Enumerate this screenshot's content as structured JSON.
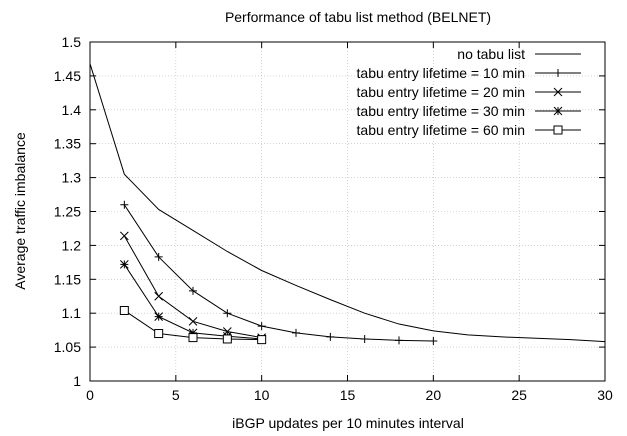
{
  "chart_data": {
    "type": "line",
    "title": "Performance of tabu list method (BELNET)",
    "xlabel": "iBGP updates per 10 minutes interval",
    "ylabel": "Average traffic imbalance",
    "xlim": [
      0,
      30
    ],
    "ylim": [
      1,
      1.5
    ],
    "xticks": [
      0,
      5,
      10,
      15,
      20,
      25,
      30
    ],
    "yticks": [
      1,
      1.05,
      1.1,
      1.15,
      1.2,
      1.25,
      1.3,
      1.35,
      1.4,
      1.45,
      1.5
    ],
    "xtick_labels": [
      "0",
      "5",
      "10",
      "15",
      "20",
      "25",
      "30"
    ],
    "ytick_labels": [
      "1",
      "1.05",
      "1.1",
      "1.15",
      "1.2",
      "1.25",
      "1.3",
      "1.35",
      "1.4",
      "1.45",
      "1.5"
    ],
    "grid": true,
    "legend_position": "top-right",
    "series": [
      {
        "name": "no tabu list",
        "marker": "none",
        "x": [
          0,
          2,
          4,
          6,
          8,
          10,
          12,
          14,
          16,
          18,
          20,
          22,
          24,
          26,
          28,
          30
        ],
        "y": [
          1.468,
          1.305,
          1.253,
          1.222,
          1.191,
          1.163,
          1.141,
          1.12,
          1.1,
          1.084,
          1.074,
          1.068,
          1.065,
          1.063,
          1.061,
          1.058
        ]
      },
      {
        "name": "tabu entry lifetime = 10 min",
        "marker": "plus",
        "x": [
          2,
          4,
          6,
          8,
          10,
          12,
          14,
          16,
          18,
          20
        ],
        "y": [
          1.26,
          1.183,
          1.133,
          1.1,
          1.081,
          1.071,
          1.065,
          1.062,
          1.06,
          1.059
        ]
      },
      {
        "name": "tabu entry lifetime = 20 min",
        "marker": "cross",
        "x": [
          2,
          4,
          6,
          8,
          10
        ],
        "y": [
          1.214,
          1.125,
          1.088,
          1.073,
          1.064
        ]
      },
      {
        "name": "tabu entry lifetime = 30 min",
        "marker": "star",
        "x": [
          2,
          4,
          6,
          8,
          10
        ],
        "y": [
          1.172,
          1.095,
          1.071,
          1.066,
          1.062
        ]
      },
      {
        "name": "tabu entry lifetime = 60 min",
        "marker": "square",
        "x": [
          2,
          4,
          6,
          8,
          10
        ],
        "y": [
          1.104,
          1.07,
          1.064,
          1.062,
          1.061
        ]
      }
    ]
  }
}
